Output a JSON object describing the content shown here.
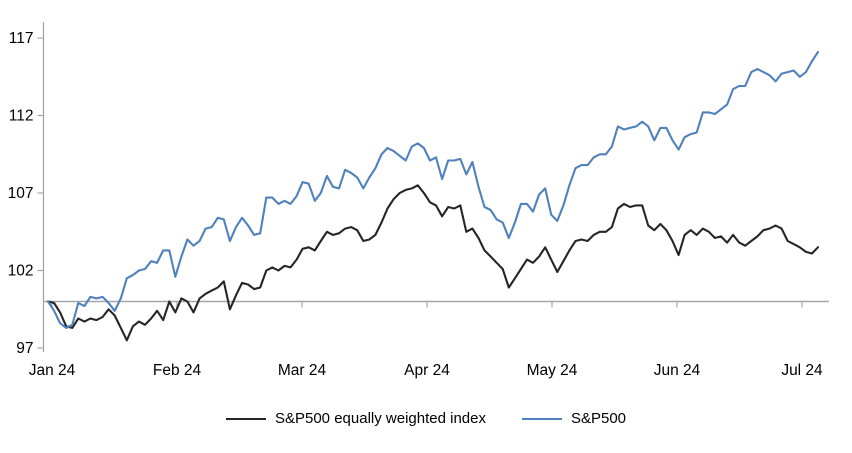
{
  "chart_data": {
    "type": "line",
    "title": "",
    "xlabel": "",
    "ylabel": "",
    "baseline_value": 100,
    "y_ticks": [
      97,
      102,
      107,
      112,
      117
    ],
    "ylim": [
      97,
      117
    ],
    "x_tick_labels": [
      "Jan 24",
      "Feb 24",
      "Mar 24",
      "Apr 24",
      "May 24",
      "Jun 24",
      "Jul 24"
    ],
    "grid": "baseline-only",
    "legend_position": "bottom-center",
    "axis_color": "#a6a6a6",
    "text_color": "#000000",
    "series": [
      {
        "name": "S&P500 equally weighted index",
        "color": "#262626",
        "values": [
          100.0,
          99.9,
          99.3,
          98.4,
          98.3,
          98.9,
          98.7,
          98.9,
          98.8,
          99.0,
          99.5,
          99.1,
          98.3,
          97.5,
          98.4,
          98.7,
          98.5,
          98.9,
          99.4,
          98.8,
          100.0,
          99.3,
          100.2,
          100.0,
          99.3,
          100.2,
          100.5,
          100.7,
          100.9,
          101.3,
          99.5,
          100.4,
          101.2,
          101.1,
          100.8,
          100.9,
          102.0,
          102.2,
          102.0,
          102.3,
          102.2,
          102.7,
          103.4,
          103.5,
          103.3,
          103.9,
          104.5,
          104.3,
          104.4,
          104.7,
          104.8,
          104.6,
          103.9,
          104.0,
          104.3,
          105.1,
          106.0,
          106.6,
          107.0,
          107.2,
          107.3,
          107.5,
          107.0,
          106.4,
          106.2,
          105.5,
          106.1,
          106.0,
          106.2,
          104.5,
          104.7,
          104.1,
          103.3,
          102.9,
          102.5,
          102.1,
          100.9,
          101.5,
          102.1,
          102.7,
          102.5,
          102.9,
          103.5,
          102.7,
          101.9,
          102.6,
          103.3,
          103.9,
          104.0,
          103.9,
          104.3,
          104.5,
          104.5,
          104.8,
          106.0,
          106.3,
          106.1,
          106.2,
          106.2,
          104.9,
          104.6,
          105.0,
          104.6,
          103.9,
          103.0,
          104.3,
          104.6,
          104.3,
          104.7,
          104.5,
          104.1,
          104.2,
          103.8,
          104.3,
          103.8,
          103.6,
          103.9,
          104.2,
          104.6,
          104.7,
          104.9,
          104.7,
          103.9,
          103.7,
          103.5,
          103.2,
          103.1,
          103.5
        ]
      },
      {
        "name": "S&P500",
        "color": "#4f81bd",
        "values": [
          100.0,
          99.4,
          98.6,
          98.3,
          98.5,
          99.9,
          99.7,
          100.3,
          100.2,
          100.3,
          99.9,
          99.4,
          100.2,
          101.5,
          101.7,
          102.0,
          102.1,
          102.6,
          102.5,
          103.3,
          103.3,
          101.6,
          102.9,
          104.0,
          103.6,
          103.9,
          104.7,
          104.8,
          105.4,
          105.3,
          103.9,
          104.8,
          105.4,
          104.9,
          104.3,
          104.4,
          106.7,
          106.7,
          106.3,
          106.5,
          106.3,
          106.8,
          107.7,
          107.6,
          106.5,
          107.0,
          108.1,
          107.4,
          107.3,
          108.5,
          108.3,
          108.0,
          107.3,
          108.0,
          108.6,
          109.5,
          109.9,
          109.7,
          109.4,
          109.1,
          110.0,
          110.2,
          109.9,
          109.1,
          109.3,
          107.9,
          109.1,
          109.1,
          109.2,
          108.2,
          109.0,
          107.4,
          106.1,
          105.9,
          105.3,
          105.1,
          104.1,
          105.1,
          106.3,
          106.3,
          105.8,
          106.9,
          107.3,
          105.6,
          105.2,
          106.2,
          107.5,
          108.6,
          108.8,
          108.8,
          109.3,
          109.5,
          109.5,
          110.0,
          111.3,
          111.1,
          111.2,
          111.3,
          111.6,
          111.3,
          110.4,
          111.2,
          111.2,
          110.4,
          109.8,
          110.6,
          110.8,
          110.9,
          112.2,
          112.2,
          112.1,
          112.4,
          112.7,
          113.7,
          113.9,
          113.9,
          114.8,
          115.0,
          114.8,
          114.6,
          114.2,
          114.7,
          114.8,
          114.9,
          114.5,
          114.8,
          115.5,
          116.1
        ]
      }
    ]
  },
  "legend": {
    "equal_weight_label": "S&P500 equally weighted index",
    "sp500_label": "S&P500"
  }
}
